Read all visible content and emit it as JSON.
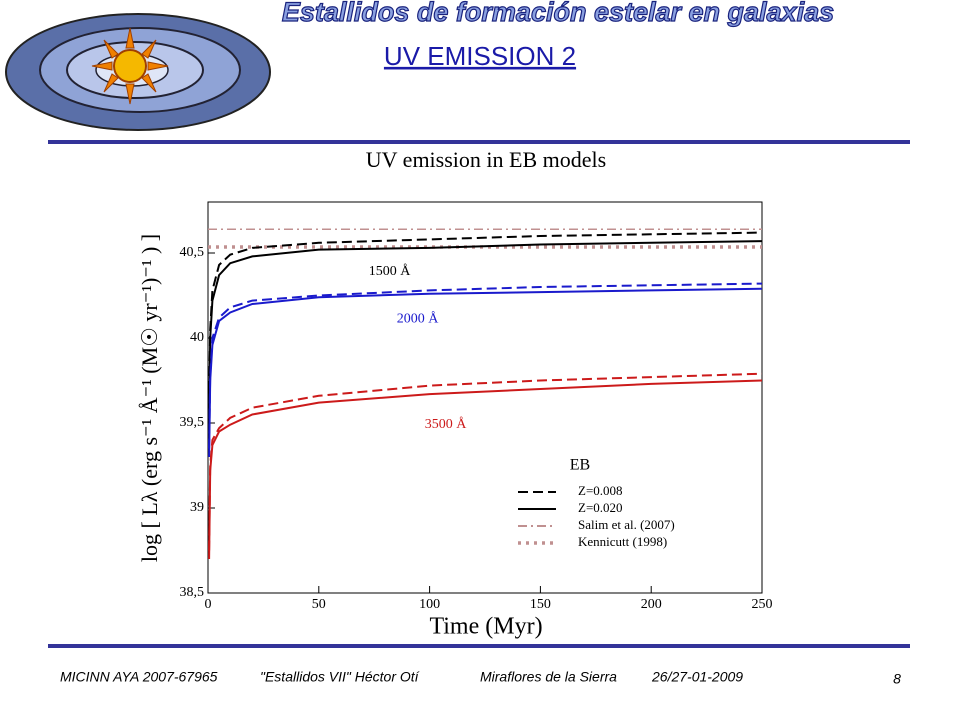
{
  "header": {
    "banner": "Estallidos de formación estelar en galaxias",
    "slide_title": "UV EMISSION 2"
  },
  "footer": {
    "project": "MICINN AYA 2007-67965",
    "talk": "\"Estallidos VII\"  Héctor Otí",
    "place": "Miraflores de la Sierra",
    "date": "26/27-01-2009",
    "page": "8"
  },
  "chart_data": {
    "type": "line",
    "title": "UV emission in EB models",
    "x_label": "Time (Myr)",
    "y_label": "log [ Lλ (erg s⁻¹ Å⁻¹ (M☉ yr⁻¹)⁻¹ ) ]",
    "x": [
      0.5,
      1,
      2,
      5,
      10,
      20,
      50,
      100,
      150,
      200,
      250
    ],
    "bands": [
      {
        "label": "1500 Å",
        "color": "#000000",
        "lines": [
          [
            39.6,
            40.05,
            40.28,
            40.43,
            40.49,
            40.53,
            40.56,
            40.58,
            40.6,
            40.61,
            40.62
          ],
          [
            39.5,
            40.0,
            40.22,
            40.37,
            40.44,
            40.48,
            40.52,
            40.53,
            40.55,
            40.56,
            40.57
          ]
        ]
      },
      {
        "label": "2000 Å",
        "color": "#1a1acc",
        "lines": [
          [
            39.35,
            39.78,
            40.0,
            40.12,
            40.18,
            40.22,
            40.25,
            40.28,
            40.3,
            40.31,
            40.32
          ],
          [
            39.3,
            39.75,
            39.96,
            40.1,
            40.15,
            40.2,
            40.24,
            40.26,
            40.27,
            40.28,
            40.29
          ]
        ]
      },
      {
        "label": "3500 Å",
        "color": "#cc1a1a",
        "lines": [
          [
            38.75,
            39.25,
            39.4,
            39.47,
            39.53,
            39.59,
            39.66,
            39.72,
            39.75,
            39.77,
            39.79
          ],
          [
            38.7,
            39.22,
            39.37,
            39.45,
            39.49,
            39.55,
            39.62,
            39.67,
            39.7,
            39.73,
            39.75
          ]
        ]
      }
    ],
    "legend": {
      "title": "EB",
      "entries": [
        {
          "name": "Z=0.008",
          "style": "dashed"
        },
        {
          "name": "Z=0.020",
          "style": "solid"
        },
        {
          "name": "Salim et al. (2007)",
          "style": "dashdot",
          "color": "#c09090",
          "value": 40.64
        },
        {
          "name": "Kennicutt (1998)",
          "style": "dotted",
          "color": "#c09090",
          "value": 40.535
        }
      ]
    },
    "xlim": [
      0,
      250
    ],
    "xticks": [
      0,
      50,
      100,
      150,
      200,
      250
    ],
    "ylim": [
      38.5,
      40.8
    ],
    "yticks": [
      {
        "value": 38.5,
        "label": "38,5"
      },
      39,
      {
        "value": 39.5,
        "label": "39,5"
      },
      40,
      {
        "value": 40.5,
        "label": "40,5"
      }
    ]
  }
}
